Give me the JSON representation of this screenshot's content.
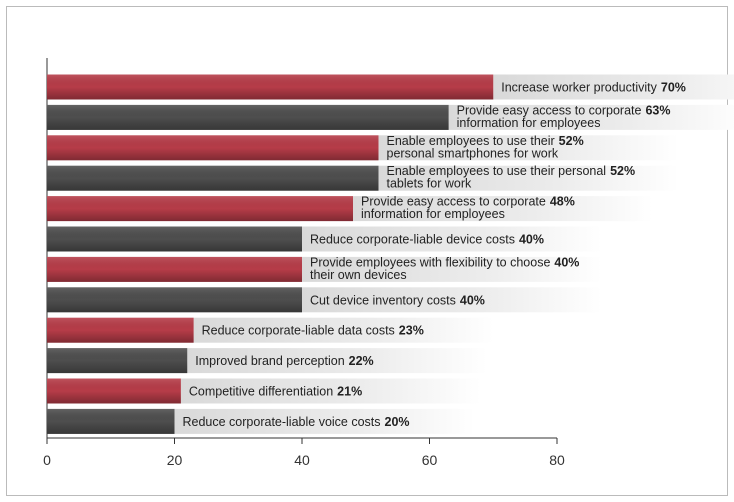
{
  "chart_data": {
    "type": "bar",
    "orientation": "horizontal",
    "categories": [
      [
        "Increase worker productivity"
      ],
      [
        "Provide easy access to corporate",
        "information for employees"
      ],
      [
        "Enable employees to use their",
        "personal smartphones for work"
      ],
      [
        "Enable employees to use their personal",
        "tablets for work"
      ],
      [
        "Provide easy access to corporate",
        "information for employees"
      ],
      [
        "Reduce corporate-liable device costs"
      ],
      [
        "Provide employees with flexibility to choose",
        "their own devices"
      ],
      [
        "Cut device inventory costs"
      ],
      [
        "Reduce corporate-liable data costs"
      ],
      [
        "Improved brand perception"
      ],
      [
        "Competitive differentiation"
      ],
      [
        "Reduce corporate-liable voice costs"
      ]
    ],
    "values": [
      70,
      63,
      52,
      52,
      48,
      40,
      40,
      40,
      23,
      22,
      21,
      20
    ],
    "value_labels": [
      "70%",
      "63%",
      "52%",
      "52%",
      "48%",
      "40%",
      "40%",
      "40%",
      "23%",
      "22%",
      "21%",
      "20%"
    ],
    "colors": [
      "#b63c48",
      "#4e4e4e"
    ],
    "xlim": [
      0,
      80
    ],
    "xticks": [
      0,
      20,
      40,
      60,
      80
    ]
  }
}
